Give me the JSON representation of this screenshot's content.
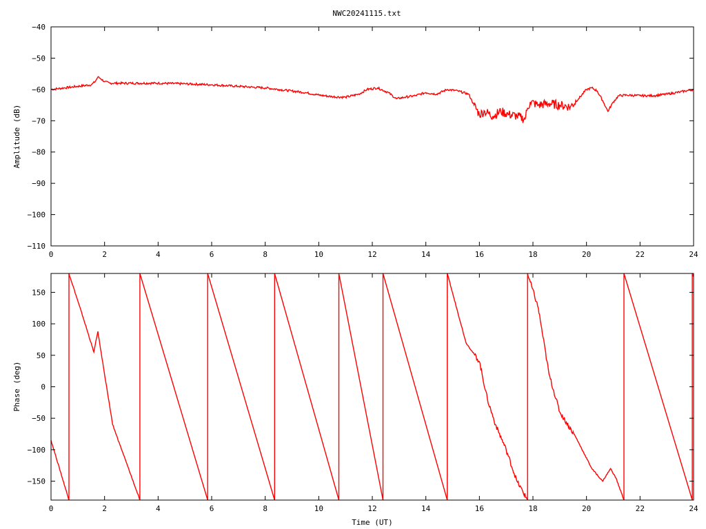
{
  "chart_data": [
    {
      "type": "line",
      "title": "NWC20241115.txt",
      "xlabel": "",
      "ylabel": "Amplitude (dB)",
      "xlim": [
        0,
        24
      ],
      "ylim": [
        -110,
        -40
      ],
      "xticks": [
        0,
        2,
        4,
        6,
        8,
        10,
        12,
        14,
        16,
        18,
        20,
        22,
        24
      ],
      "yticks": [
        -40,
        -50,
        -60,
        -70,
        -80,
        -90,
        -100,
        -110
      ],
      "ytick_labels": [
        "−40",
        "−50",
        "−60",
        "−70",
        "−80",
        "−90",
        "−100",
        "−110"
      ],
      "grid": false,
      "legend": "none",
      "color": "#ff0000",
      "series": [
        {
          "x": [
            0,
            0.5,
            1,
            1.5,
            1.65,
            1.75,
            1.85,
            2,
            2.2,
            2.5,
            3,
            4,
            5,
            6,
            7,
            8,
            8.5,
            9,
            9.5,
            10,
            10.5,
            11,
            11.5,
            11.8,
            12.2,
            12.6,
            12.9,
            13.2,
            13.6,
            14,
            14.4,
            14.8,
            15.2,
            15.6,
            15.8,
            16,
            16.2,
            16.5,
            16.8,
            17.1,
            17.4,
            17.7,
            17.8,
            17.9,
            18.2,
            18.6,
            19,
            19.4,
            19.7,
            20,
            20.2,
            20.4,
            20.6,
            20.8,
            21,
            21.2,
            21.5,
            22,
            22.5,
            23,
            23.5,
            24
          ],
          "y": [
            -60,
            -59.5,
            -59,
            -58.5,
            -57.5,
            -56,
            -56.5,
            -57.5,
            -58,
            -58,
            -58,
            -58,
            -58.2,
            -58.5,
            -59,
            -59.5,
            -60,
            -60.5,
            -61,
            -61.8,
            -62.3,
            -62.5,
            -61.5,
            -60,
            -59.5,
            -61,
            -63,
            -62.5,
            -62,
            -61,
            -61.5,
            -60,
            -60.5,
            -61.5,
            -65,
            -68,
            -67,
            -68.5,
            -67,
            -68,
            -68.5,
            -69.5,
            -66,
            -64,
            -65,
            -64.5,
            -65,
            -65.5,
            -63,
            -60,
            -59.5,
            -60.5,
            -63.5,
            -67,
            -64,
            -62,
            -61.8,
            -62,
            -62,
            -61.5,
            -60.8,
            -60
          ]
        }
      ]
    },
    {
      "type": "line",
      "title": "",
      "xlabel": "Time (UT)",
      "ylabel": "Phase (deg)",
      "xlim": [
        0,
        24
      ],
      "ylim": [
        -180,
        180
      ],
      "xticks": [
        0,
        2,
        4,
        6,
        8,
        10,
        12,
        14,
        16,
        18,
        20,
        22,
        24
      ],
      "yticks": [
        150,
        100,
        50,
        0,
        -50,
        -100,
        -150
      ],
      "ytick_labels": [
        "150",
        "100",
        "50",
        "0",
        "−50",
        "−100",
        "−150"
      ],
      "grid": false,
      "legend": "none",
      "color": "#ff0000",
      "series": [
        {
          "x": [
            0,
            0.67,
            0.67,
            1.2,
            1.6,
            1.75,
            1.85,
            2.3,
            3.32,
            3.32,
            5.85,
            5.85,
            8.35,
            8.35,
            10.75,
            10.75,
            12.4,
            12.4,
            14.8,
            14.8,
            15.5,
            16,
            16.3,
            16.6,
            17,
            17.4,
            17.8,
            17.8,
            18.2,
            18.6,
            19,
            19.6,
            20.2,
            20.6,
            20.9,
            21.1,
            21.4,
            21.4,
            23.95,
            23.95,
            24
          ],
          "y": [
            -85,
            -180,
            180,
            110,
            55,
            88,
            60,
            -60,
            -180,
            180,
            -180,
            180,
            -180,
            180,
            -180,
            180,
            -180,
            180,
            -180,
            180,
            70,
            40,
            -20,
            -60,
            -100,
            -150,
            -180,
            180,
            125,
            20,
            -40,
            -80,
            -130,
            -150,
            -130,
            -145,
            -180,
            180,
            -180,
            180,
            175
          ]
        }
      ]
    }
  ]
}
